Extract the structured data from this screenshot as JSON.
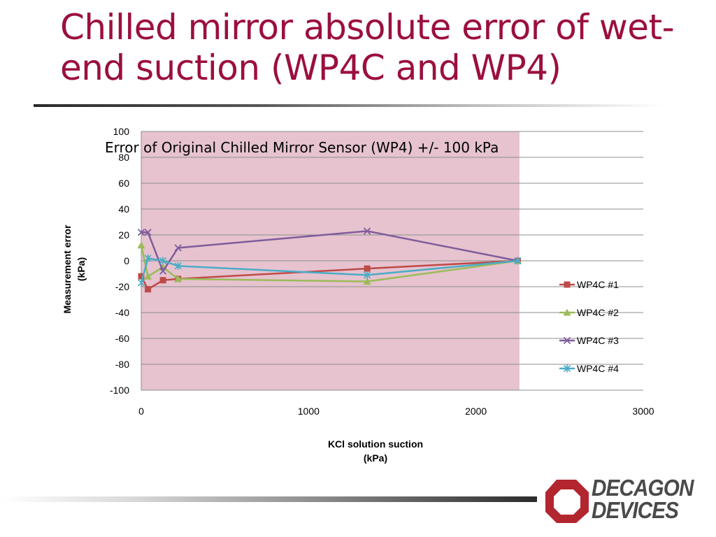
{
  "slide": {
    "title": "Chilled mirror absolute error of wet-end suction (WP4C and WP4)"
  },
  "chart_data": {
    "type": "line",
    "annotation": "Error of Original Chilled Mirror Sensor (WP4) +/- 100 kPa",
    "xlabel": "KCl solution suction (kPa)",
    "xlabel_lines": [
      "KCl solution suction",
      "(kPa)"
    ],
    "ylabel": "Measurement error (kPa)",
    "ylabel_lines": [
      "Measurement error",
      "(kPa)"
    ],
    "xlim": [
      0,
      3000
    ],
    "ylim": [
      -100,
      100
    ],
    "xticks": [
      0,
      1000,
      2000,
      3000
    ],
    "yticks": [
      100,
      80,
      60,
      40,
      20,
      0,
      -20,
      -40,
      -60,
      -80,
      -100
    ],
    "shaded_band": {
      "x": [
        0,
        2260
      ],
      "y": [
        -100,
        100
      ],
      "color": "#e6c3cf"
    },
    "grid": true,
    "legend_position": "right",
    "series": [
      {
        "name": "WP4C #1",
        "color": "#be4b48",
        "marker": "square",
        "x": [
          0,
          40,
          130,
          220,
          1350,
          2250
        ],
        "y": [
          -12,
          -22,
          -15,
          -14,
          -6,
          0
        ]
      },
      {
        "name": "WP4C #2",
        "color": "#9bbb59",
        "marker": "triangle",
        "x": [
          0,
          40,
          130,
          220,
          1350,
          2250
        ],
        "y": [
          12,
          -12,
          -5,
          -14,
          -16,
          0
        ]
      },
      {
        "name": "WP4C #3",
        "color": "#7f5c9b",
        "marker": "x",
        "x": [
          0,
          40,
          130,
          220,
          1350,
          2250
        ],
        "y": [
          22,
          22,
          -8,
          10,
          23,
          0
        ]
      },
      {
        "name": "WP4C #4",
        "color": "#4aacc6",
        "marker": "star",
        "x": [
          0,
          40,
          130,
          220,
          1350,
          2250
        ],
        "y": [
          -17,
          2,
          0,
          -4,
          -11,
          0
        ]
      }
    ]
  },
  "logo": {
    "line1": "DECAGON",
    "line2": "DEVICES",
    "color": "#b3262f"
  }
}
